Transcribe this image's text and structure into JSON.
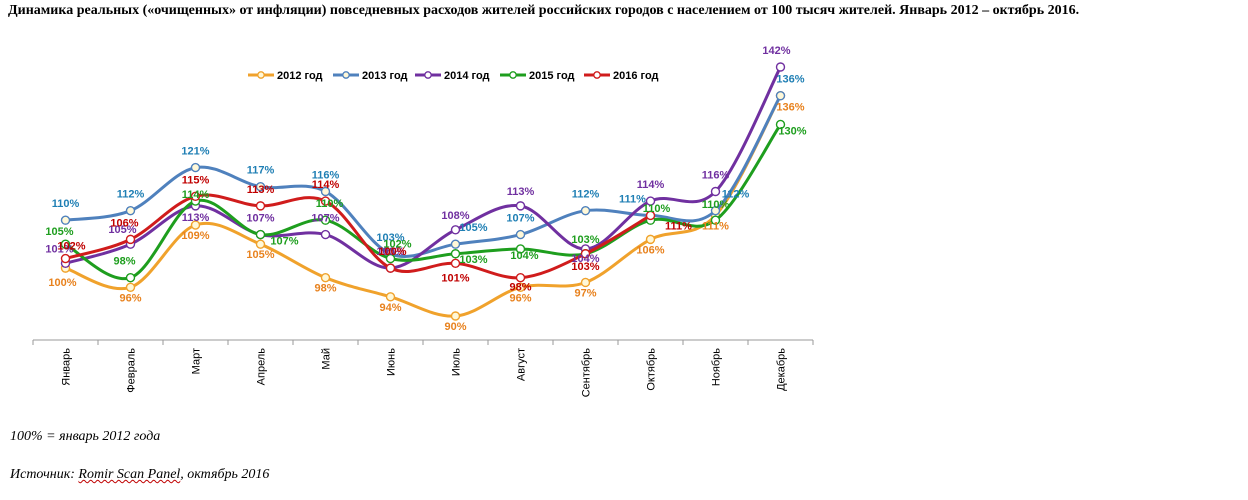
{
  "title": "Динамика реальных («очищенных» от инфляции) повседневных расходов жителей российских городов с населением от 100 тысяч жителей. Январь 2012 – октябрь 2016.",
  "note": "100% = январь 2012 года",
  "source_prefix": "Источник: ",
  "source_name": "Romir Scan Panel",
  "source_suffix": ", октябрь 2016",
  "chart_data": {
    "type": "line",
    "categories": [
      "Январь",
      "Февраль",
      "Март",
      "Апрель",
      "Май",
      "Июнь",
      "Июль",
      "Август",
      "Сентябрь",
      "Октябрь",
      "Ноябрь",
      "Декабрь"
    ],
    "unit": "%",
    "ylim": [
      84,
      146
    ],
    "grid": false,
    "legend_position": "top",
    "series": [
      {
        "name": "2012 год",
        "color": "#f0a22c",
        "marker_fill": "#fff8d8",
        "label_color": "#e8821e",
        "values": [
          100,
          96,
          109,
          105,
          98,
          94,
          90,
          96,
          97,
          106,
          111,
          136
        ]
      },
      {
        "name": "2013 год",
        "color": "#4f81bd",
        "marker_fill": "#fff8d8",
        "label_color": "#1f7fb4",
        "values": [
          110,
          112,
          121,
          117,
          116,
          103,
          105,
          107,
          112,
          111,
          112,
          136
        ]
      },
      {
        "name": "2014 год",
        "color": "#7030a0",
        "marker_fill": "#ffffff",
        "label_color": "#7030a0",
        "values": [
          101,
          105,
          113,
          107,
          107,
          100,
          108,
          113,
          104,
          114,
          116,
          142
        ]
      },
      {
        "name": "2015 год",
        "color": "#1e9e1e",
        "marker_fill": "#ffffff",
        "label_color": "#1e9e1e",
        "values": [
          105,
          98,
          114,
          107,
          110,
          102,
          103,
          104,
          103,
          110,
          110,
          130
        ]
      },
      {
        "name": "2016 год",
        "color": "#d01c1c",
        "marker_fill": "#ffffff",
        "label_color": "#c00000",
        "values": [
          102,
          106,
          115,
          113,
          114,
          100,
          101,
          98,
          103,
          111,
          null,
          null
        ]
      }
    ]
  }
}
